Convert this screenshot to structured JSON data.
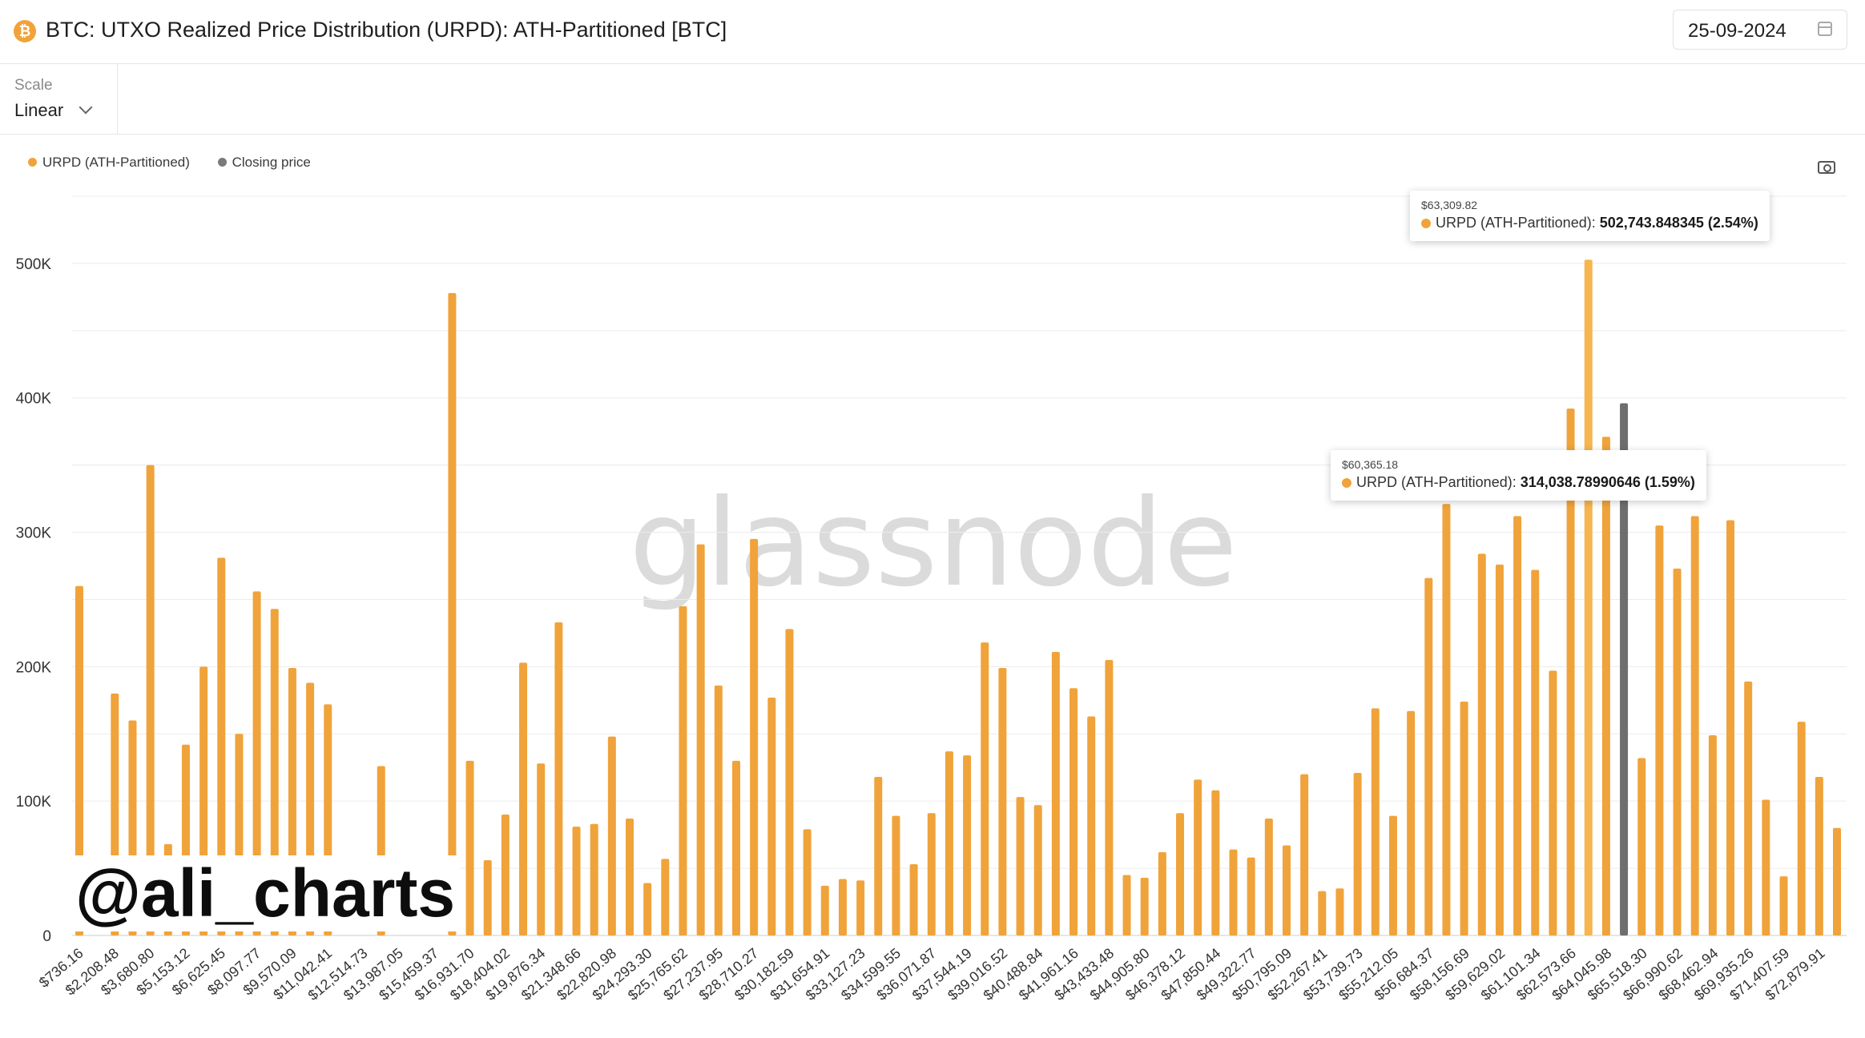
{
  "header": {
    "icon": "bitcoin-icon",
    "title": "BTC: UTXO Realized Price Distribution (URPD): ATH-Partitioned [BTC]",
    "date": "25-09-2024"
  },
  "controls": {
    "scale_label": "Scale",
    "scale_value": "Linear"
  },
  "legend": [
    {
      "label": "URPD (ATH-Partitioned)",
      "color": "#f0a33a"
    },
    {
      "label": "Closing price",
      "color": "#7a7a7a"
    }
  ],
  "watermark": "glassnode",
  "handle": "@ali_charts",
  "tooltips": [
    {
      "price": "$63,309.82",
      "series": "URPD (ATH-Partitioned):",
      "value": "502,743.848345 (2.54%)"
    },
    {
      "price": "$60,365.18",
      "series": "URPD (ATH-Partitioned):",
      "value": "314,038.78990646 (1.59%)"
    }
  ],
  "colors": {
    "bar": "#f0a33a",
    "bar_highlight": "#f6b54f",
    "closing": "#6e6e6e"
  },
  "chart_data": {
    "type": "bar",
    "title": "BTC: UTXO Realized Price Distribution (URPD): ATH-Partitioned [BTC]",
    "xlabel": "",
    "ylabel": "",
    "ylim": [
      0,
      550000
    ],
    "yticks": [
      0,
      100000,
      200000,
      300000,
      400000,
      500000
    ],
    "ytick_labels": [
      "0",
      "100K",
      "200K",
      "300K",
      "400K",
      "500K"
    ],
    "xtick_labels": [
      "$736.16",
      "$2,208.48",
      "$3,680.80",
      "$5,153.12",
      "$6,625.45",
      "$8,097.77",
      "$9,570.09",
      "$11,042.41",
      "$12,514.73",
      "$13,987.05",
      "$15,459.37",
      "$16,931.70",
      "$18,404.02",
      "$19,876.34",
      "$21,348.66",
      "$22,820.98",
      "$24,293.30",
      "$25,765.62",
      "$27,237.95",
      "$28,710.27",
      "$30,182.59",
      "$31,654.91",
      "$33,127.23",
      "$34,599.55",
      "$36,071.87",
      "$37,544.19",
      "$39,016.52",
      "$40,488.84",
      "$41,961.16",
      "$43,433.48",
      "$44,905.80",
      "$46,378.12",
      "$47,850.44",
      "$49,322.77",
      "$50,795.09",
      "$52,267.41",
      "$53,739.73",
      "$55,212.05",
      "$56,684.37",
      "$58,156.69",
      "$59,629.02",
      "$61,101.34",
      "$62,573.66",
      "$64,045.98",
      "$65,518.30",
      "$66,990.62",
      "$68,462.94",
      "$69,935.26",
      "$71,407.59",
      "$72,879.91"
    ],
    "grid": true,
    "legend_position": "top-left",
    "series": [
      {
        "name": "URPD (ATH-Partitioned)",
        "values": [
          260000,
          0,
          180000,
          160000,
          350000,
          68000,
          142000,
          200000,
          281000,
          150000,
          256000,
          243000,
          199000,
          188000,
          172000,
          0,
          0,
          126000,
          0,
          0,
          0,
          478000,
          130000,
          56000,
          90000,
          203000,
          128000,
          233000,
          81000,
          83000,
          148000,
          87000,
          39000,
          57000,
          245000,
          291000,
          186000,
          130000,
          295000,
          177000,
          228000,
          79000,
          37000,
          42000,
          41000,
          118000,
          89000,
          53000,
          91000,
          137000,
          134000,
          218000,
          199000,
          103000,
          97000,
          211000,
          184000,
          163000,
          205000,
          45000,
          43000,
          62000,
          91000,
          116000,
          108000,
          64000,
          58000,
          87000,
          67000,
          120000,
          33000,
          35000,
          121000,
          169000,
          89000,
          167000,
          266000,
          321000,
          174000,
          284000,
          276000,
          312000,
          272000,
          197000,
          392000,
          502744,
          371000,
          0,
          132000,
          305000,
          273000,
          312000,
          149000,
          309000,
          189000,
          101000,
          44000,
          159000,
          118000,
          80000
        ]
      },
      {
        "name": "Closing price",
        "x_index": 87,
        "values": [
          396000
        ]
      }
    ]
  }
}
